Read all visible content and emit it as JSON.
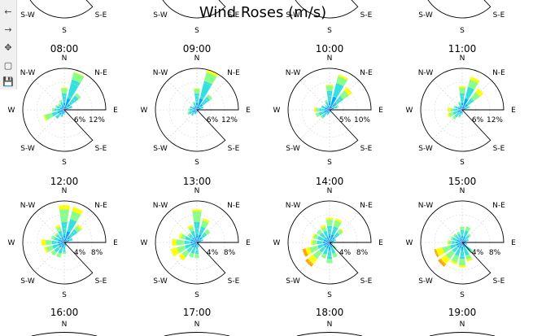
{
  "title": "Wind Roses (m/s)",
  "toolbar": {
    "items": [
      {
        "name": "back-icon",
        "glyph": "←"
      },
      {
        "name": "forward-icon",
        "glyph": "→"
      },
      {
        "name": "pan-icon",
        "glyph": "✥"
      },
      {
        "name": "zoom-icon",
        "glyph": "▢"
      },
      {
        "name": "save-icon",
        "glyph": "💾"
      }
    ]
  },
  "chart_data": {
    "type": "polar-bar",
    "title": "Wind Roses (m/s)",
    "directions": [
      "N",
      "NNE",
      "NE",
      "ENE",
      "E",
      "ESE",
      "SE",
      "SSE",
      "S",
      "SSW",
      "SW",
      "WSW",
      "W",
      "WNW",
      "NW",
      "NNW"
    ],
    "compass_labels": {
      "N": "N",
      "NE": "N-E",
      "E": "E",
      "SE": "S-E",
      "S": "S",
      "SW": "S-W",
      "W": "W",
      "NW": "N-W"
    },
    "speed_bin_colors": [
      "#1f3fbf",
      "#00aaff",
      "#33e0e0",
      "#88ff88",
      "#ffff00",
      "#ffa500",
      "#e03020"
    ],
    "grid": true,
    "top_row_partial_labels": [
      "S-W",
      "S-E",
      "S-W",
      "S-E",
      "S-W",
      "S-E",
      "S-W",
      "S-E"
    ],
    "top_row_partial_south": [
      "S",
      "S",
      "S",
      "S"
    ],
    "bottom_row_hours": [
      "16:00",
      "17:00",
      "18:00",
      "19:00"
    ],
    "panels": [
      {
        "hour": "08:00",
        "rticks": [
          "6%",
          "12%"
        ],
        "rmax": 14,
        "values": [
          [
            0.5,
            2,
            3,
            1.8,
            0.3
          ],
          [
            1,
            3,
            6.5,
            2.5,
            0.2
          ],
          [
            0.5,
            2,
            3.5,
            1,
            0
          ],
          [
            0.3,
            1,
            1.5,
            0,
            0
          ],
          [
            0.2,
            0.4,
            0,
            0,
            0
          ],
          [
            0.1,
            0.3,
            0,
            0,
            0
          ],
          [
            0.1,
            0.2,
            0,
            0,
            0
          ],
          [
            0.2,
            0.5,
            0.3,
            0,
            0
          ],
          [
            0.3,
            0.8,
            0.5,
            0,
            0
          ],
          [
            0.3,
            1.2,
            1,
            0,
            0
          ],
          [
            0.5,
            1.5,
            1.8,
            0,
            0
          ],
          [
            0.8,
            1.5,
            2,
            2.5,
            0.5
          ],
          [
            0.6,
            1.2,
            1.5,
            0.8,
            0
          ],
          [
            0.5,
            1,
            1.2,
            0.5,
            0
          ],
          [
            0.4,
            1,
            0.8,
            0.5,
            0
          ],
          [
            0.5,
            1.2,
            1,
            0.8,
            0
          ]
        ]
      },
      {
        "hour": "09:00",
        "rticks": [
          "6%",
          "12%"
        ],
        "rmax": 14,
        "values": [
          [
            0.5,
            2,
            3,
            1.5,
            0.3
          ],
          [
            1,
            3,
            6,
            3,
            0.8
          ],
          [
            0.5,
            2,
            3,
            1,
            0
          ],
          [
            0.3,
            1,
            1,
            0,
            0
          ],
          [
            0.2,
            0.4,
            0,
            0,
            0
          ],
          [
            0.1,
            0.3,
            0,
            0,
            0
          ],
          [
            0.1,
            0.2,
            0,
            0,
            0
          ],
          [
            0.2,
            0.4,
            0,
            0,
            0
          ],
          [
            0.3,
            0.5,
            0.3,
            0,
            0
          ],
          [
            0.3,
            0.8,
            0.5,
            0,
            0
          ],
          [
            0.5,
            1,
            1,
            0,
            0
          ],
          [
            0.5,
            1.2,
            1.2,
            0.5,
            0
          ],
          [
            0.5,
            1,
            1,
            0.5,
            0
          ],
          [
            0.5,
            1,
            1,
            0,
            0
          ],
          [
            0.4,
            0.8,
            0.5,
            0,
            0
          ],
          [
            0.4,
            1,
            1,
            0.5,
            0
          ]
        ]
      },
      {
        "hour": "10:00",
        "rticks": [
          "5%",
          "10%"
        ],
        "rmax": 12,
        "values": [
          [
            0.5,
            2,
            3,
            1.5,
            0.3
          ],
          [
            1,
            3,
            4,
            2,
            0.5
          ],
          [
            0.5,
            2,
            2.5,
            2,
            1.2
          ],
          [
            0.3,
            1,
            1,
            0.5,
            0
          ],
          [
            0.2,
            0.4,
            0.3,
            0,
            0
          ],
          [
            0.1,
            0.3,
            0,
            0,
            0
          ],
          [
            0.1,
            0.2,
            0,
            0,
            0
          ],
          [
            0.2,
            0.4,
            0,
            0,
            0
          ],
          [
            0.3,
            0.5,
            0.3,
            0,
            0
          ],
          [
            0.3,
            0.8,
            0.5,
            0,
            0
          ],
          [
            0.5,
            1,
            1.3,
            0.5,
            0
          ],
          [
            0.5,
            1.2,
            1.5,
            1,
            0
          ],
          [
            0.5,
            1,
            1.5,
            1,
            0.5
          ],
          [
            0.5,
            1,
            1,
            0,
            0
          ],
          [
            0.4,
            0.8,
            0.5,
            0,
            0
          ],
          [
            0.4,
            1,
            1,
            0.5,
            0
          ]
        ]
      },
      {
        "hour": "11:00",
        "rticks": [
          "6%",
          "12%"
        ],
        "rmax": 14,
        "values": [
          [
            0.5,
            2,
            3,
            2,
            0.5
          ],
          [
            1,
            3,
            4,
            2.5,
            1
          ],
          [
            0.5,
            2,
            2.5,
            2.5,
            1.5
          ],
          [
            0.3,
            1,
            1,
            0.5,
            0
          ],
          [
            0.2,
            0.4,
            0.3,
            0,
            0
          ],
          [
            0.1,
            0.3,
            0,
            0,
            0
          ],
          [
            0.1,
            0.2,
            0,
            0,
            0
          ],
          [
            0.2,
            0.5,
            0,
            0,
            0
          ],
          [
            0.3,
            0.8,
            0.5,
            0,
            0
          ],
          [
            0.3,
            1,
            1,
            0.5,
            0
          ],
          [
            0.5,
            1.2,
            1.5,
            1,
            0
          ],
          [
            0.5,
            1.2,
            1.5,
            1.5,
            0.5
          ],
          [
            0.5,
            1,
            1.5,
            1,
            1
          ],
          [
            0.5,
            1,
            1,
            0.5,
            0
          ],
          [
            0.4,
            0.8,
            0.5,
            0,
            0
          ],
          [
            0.4,
            1,
            1,
            0.5,
            0
          ]
        ]
      },
      {
        "hour": "12:00",
        "rticks": [
          "4%",
          "8%"
        ],
        "rmax": 10,
        "values": [
          [
            0.5,
            1.5,
            3,
            3,
            1
          ],
          [
            0.8,
            2,
            3,
            2,
            1
          ],
          [
            0.5,
            1.5,
            2,
            1,
            0.5
          ],
          [
            0.3,
            1,
            0.8,
            0,
            0
          ],
          [
            0.2,
            0.5,
            0,
            0,
            0
          ],
          [
            0.2,
            0.3,
            0,
            0,
            0
          ],
          [
            0.1,
            0.3,
            0,
            0,
            0
          ],
          [
            0.2,
            0.5,
            0.3,
            0,
            0
          ],
          [
            0.3,
            1,
            1,
            0.5,
            0
          ],
          [
            0.3,
            1,
            1.5,
            1,
            0
          ],
          [
            0.5,
            1,
            1.5,
            1,
            0
          ],
          [
            0.5,
            1,
            1.5,
            1.5,
            0.5
          ],
          [
            0.5,
            1,
            1.5,
            1.5,
            1
          ],
          [
            0.5,
            1,
            1,
            0.8,
            0
          ],
          [
            0.4,
            1,
            1,
            0.5,
            0
          ],
          [
            0.4,
            1,
            1.5,
            1,
            0.5
          ]
        ]
      },
      {
        "hour": "13:00",
        "rticks": [
          "4%",
          "8%"
        ],
        "rmax": 10,
        "values": [
          [
            0.5,
            1.5,
            3,
            2.5,
            0.5
          ],
          [
            0.5,
            1.5,
            2,
            1.5,
            0.5
          ],
          [
            0.5,
            1,
            1.5,
            1,
            0
          ],
          [
            0.3,
            0.8,
            0.5,
            0,
            0
          ],
          [
            0.2,
            0.5,
            0,
            0,
            0
          ],
          [
            0.2,
            0.3,
            0,
            0,
            0
          ],
          [
            0.1,
            0.3,
            0,
            0,
            0
          ],
          [
            0.2,
            0.5,
            0.5,
            0,
            0
          ],
          [
            0.3,
            1,
            1.5,
            1,
            0
          ],
          [
            0.3,
            1,
            1.5,
            1,
            0
          ],
          [
            0.5,
            1,
            1.5,
            1.5,
            1
          ],
          [
            0.5,
            1,
            1.5,
            2,
            1.5
          ],
          [
            0.5,
            1,
            1.5,
            2,
            1
          ],
          [
            0.5,
            1,
            1.5,
            1,
            0.5
          ],
          [
            0.4,
            1,
            1,
            0.5,
            0
          ],
          [
            0.4,
            1,
            1.5,
            1,
            0.5
          ]
        ]
      },
      {
        "hour": "14:00",
        "rticks": [
          "4%",
          "8%"
        ],
        "rmax": 10,
        "values": [
          [
            0.5,
            1.5,
            2,
            1.5,
            0.5
          ],
          [
            0.5,
            1.5,
            2,
            1.5,
            0.5
          ],
          [
            0.5,
            1,
            1.5,
            1,
            0.3
          ],
          [
            0.3,
            0.8,
            0.5,
            0,
            0
          ],
          [
            0.2,
            0.5,
            0,
            0,
            0
          ],
          [
            0.2,
            0.3,
            0.3,
            0,
            0
          ],
          [
            0.2,
            0.5,
            1,
            0.5,
            0
          ],
          [
            0.3,
            1,
            1.5,
            1,
            0
          ],
          [
            0.5,
            1.5,
            2,
            1,
            0
          ],
          [
            0.5,
            1,
            1.5,
            1,
            0
          ],
          [
            0.5,
            1,
            1.5,
            2,
            1.5,
            0.8
          ],
          [
            0.5,
            1,
            1.5,
            2,
            1,
            0.8
          ],
          [
            0.5,
            1,
            1.5,
            1,
            0.5
          ],
          [
            0.5,
            1,
            1.5,
            1,
            0.3
          ],
          [
            0.4,
            1,
            1.5,
            1,
            0
          ],
          [
            0.4,
            1,
            1.5,
            1,
            0.5
          ]
        ]
      },
      {
        "hour": "15:00",
        "rticks": [
          "4%",
          "8%"
        ],
        "rmax": 10,
        "values": [
          [
            0.5,
            1,
            1.5,
            0.8,
            0
          ],
          [
            0.5,
            1,
            1.5,
            1,
            0
          ],
          [
            0.4,
            0.8,
            1,
            0.5,
            0
          ],
          [
            0.3,
            0.8,
            0.5,
            0,
            0
          ],
          [
            0.2,
            0.5,
            0,
            0,
            0
          ],
          [
            0.2,
            0.5,
            0.5,
            0,
            0
          ],
          [
            0.3,
            1,
            1.5,
            0.5,
            0
          ],
          [
            0.3,
            1,
            2,
            1,
            0.5
          ],
          [
            0.5,
            1.5,
            2,
            1.5,
            0.5
          ],
          [
            0.5,
            1,
            2,
            1.5,
            0.5
          ],
          [
            0.5,
            1,
            1.5,
            2,
            1.5,
            0.8
          ],
          [
            0.5,
            1,
            1.5,
            2,
            1.5,
            0.5
          ],
          [
            0.5,
            1,
            1,
            0.8,
            0.3
          ],
          [
            0.4,
            1,
            1,
            0.5,
            0
          ],
          [
            0.4,
            0.8,
            1,
            0.5,
            0
          ],
          [
            0.4,
            0.8,
            1,
            0.5,
            0
          ]
        ]
      }
    ]
  }
}
